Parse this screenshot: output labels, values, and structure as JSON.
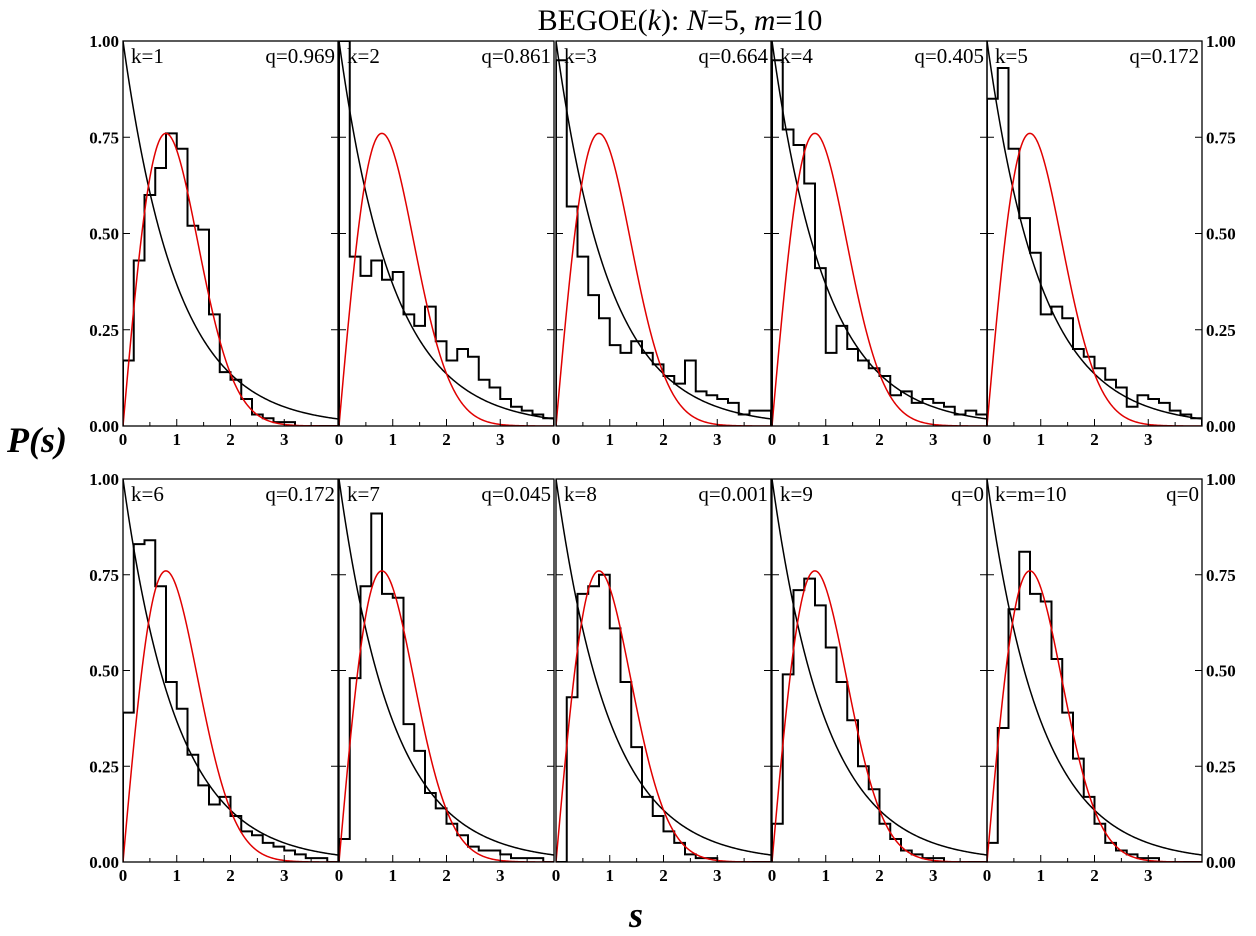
{
  "title": {
    "prefix": "BEGOE(",
    "k": "k",
    "mid": "): ",
    "N": "N",
    "N_val": "=5, ",
    "m": "m",
    "m_val": "=10"
  },
  "ylabel": "P(s)",
  "xlabel": "s",
  "chart_data": {
    "type": "line",
    "title": "BEGOE(k): N=5, m=10",
    "xlabel": "s",
    "ylabel": "P(s)",
    "xlim": [
      0,
      4
    ],
    "ylim": [
      0,
      1
    ],
    "xticks": [
      "0",
      "1",
      "2",
      "3"
    ],
    "yticks": [
      "0.00",
      "0.25",
      "0.50",
      "0.75",
      "1.00"
    ],
    "bin_width": 0.2,
    "curves": {
      "poisson_color": "#000000",
      "wigner_color": "#e00000"
    },
    "panels": [
      {
        "k_label": "k=1",
        "q_label": "q=0.969",
        "hist": [
          0.17,
          0.43,
          0.6,
          0.67,
          0.76,
          0.72,
          0.52,
          0.51,
          0.29,
          0.14,
          0.12,
          0.07,
          0.03,
          0.02,
          0.01,
          0.01,
          0.0,
          0.0,
          0.0,
          0.0
        ]
      },
      {
        "k_label": "k=2",
        "q_label": "q=0.861",
        "hist": [
          1.0,
          0.44,
          0.39,
          0.43,
          0.38,
          0.4,
          0.29,
          0.26,
          0.31,
          0.22,
          0.17,
          0.2,
          0.18,
          0.12,
          0.1,
          0.07,
          0.05,
          0.04,
          0.03,
          0.02
        ]
      },
      {
        "k_label": "k=3",
        "q_label": "q=0.664",
        "hist": [
          0.95,
          0.57,
          0.44,
          0.34,
          0.28,
          0.21,
          0.19,
          0.22,
          0.19,
          0.16,
          0.13,
          0.11,
          0.17,
          0.09,
          0.08,
          0.07,
          0.06,
          0.03,
          0.04,
          0.04
        ]
      },
      {
        "k_label": "k=4",
        "q_label": "q=0.405",
        "hist": [
          0.95,
          0.77,
          0.73,
          0.63,
          0.41,
          0.19,
          0.26,
          0.2,
          0.17,
          0.15,
          0.13,
          0.08,
          0.09,
          0.06,
          0.07,
          0.06,
          0.05,
          0.03,
          0.04,
          0.03
        ]
      },
      {
        "k_label": "k=5",
        "q_label": "q=0.172",
        "hist": [
          0.85,
          0.93,
          0.72,
          0.54,
          0.45,
          0.29,
          0.31,
          0.28,
          0.2,
          0.18,
          0.15,
          0.12,
          0.1,
          0.05,
          0.08,
          0.07,
          0.06,
          0.04,
          0.03,
          0.02
        ]
      },
      {
        "k_label": "k=6",
        "q_label": "q=0.172",
        "hist": [
          0.39,
          0.83,
          0.84,
          0.72,
          0.47,
          0.4,
          0.28,
          0.2,
          0.15,
          0.17,
          0.12,
          0.08,
          0.07,
          0.05,
          0.04,
          0.03,
          0.02,
          0.01,
          0.01,
          0.0
        ]
      },
      {
        "k_label": "k=7",
        "q_label": "q=0.045",
        "hist": [
          0.06,
          0.48,
          0.72,
          0.91,
          0.7,
          0.69,
          0.36,
          0.29,
          0.18,
          0.14,
          0.1,
          0.07,
          0.04,
          0.03,
          0.03,
          0.02,
          0.01,
          0.01,
          0.01,
          0.0
        ]
      },
      {
        "k_label": "k=8",
        "q_label": "q=0.001",
        "hist": [
          0.0,
          0.43,
          0.7,
          0.72,
          0.75,
          0.61,
          0.47,
          0.3,
          0.17,
          0.12,
          0.08,
          0.05,
          0.02,
          0.01,
          0.01,
          0.0,
          0.0,
          0.0,
          0.0,
          0.0
        ]
      },
      {
        "k_label": "k=9",
        "q_label": "q=0",
        "hist": [
          0.1,
          0.49,
          0.71,
          0.74,
          0.67,
          0.56,
          0.47,
          0.37,
          0.25,
          0.19,
          0.1,
          0.06,
          0.03,
          0.02,
          0.01,
          0.01,
          0.0,
          0.0,
          0.0,
          0.0
        ]
      },
      {
        "k_label": "k=m=10",
        "q_label": "q=0",
        "hist": [
          0.05,
          0.35,
          0.66,
          0.81,
          0.7,
          0.68,
          0.53,
          0.39,
          0.27,
          0.17,
          0.1,
          0.05,
          0.03,
          0.02,
          0.01,
          0.01,
          0.0,
          0.0,
          0.0,
          0.0
        ]
      }
    ]
  }
}
